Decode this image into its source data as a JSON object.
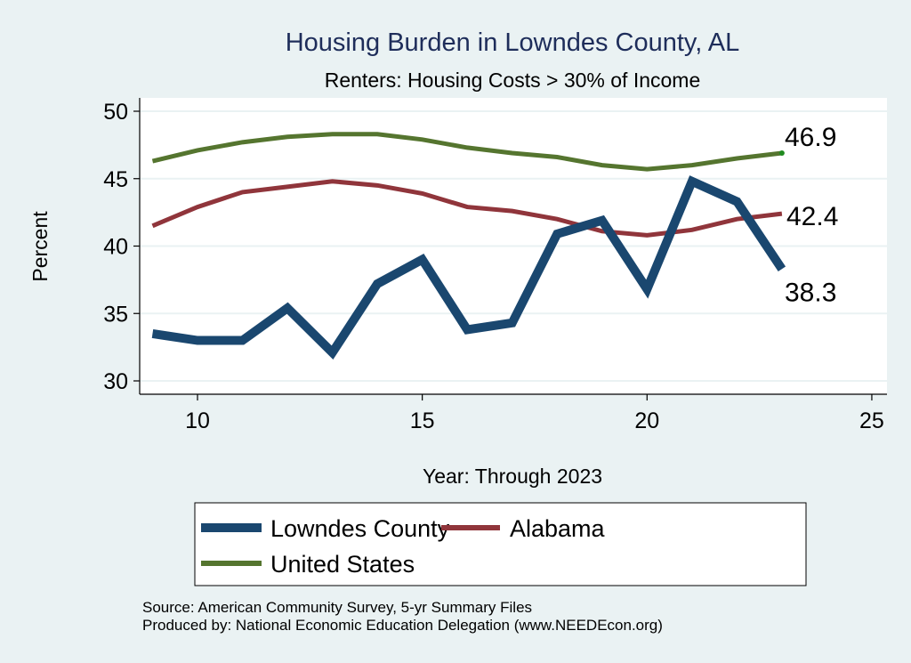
{
  "chart_data": {
    "type": "line",
    "title": "Housing Burden in Lowndes County, AL",
    "subtitle": "Renters: Housing Costs > 30% of Income",
    "xlabel": "Year: Through 2023",
    "ylabel": "Percent",
    "xlim": [
      9,
      25
    ],
    "ylim": [
      30,
      50
    ],
    "xticks": [
      10,
      15,
      20,
      25
    ],
    "yticks": [
      30,
      35,
      40,
      45,
      50
    ],
    "grid": true,
    "x": [
      9,
      10,
      11,
      12,
      13,
      14,
      15,
      16,
      17,
      18,
      19,
      20,
      21,
      22,
      23
    ],
    "series": [
      {
        "name": "Lowndes County",
        "color": "#1a476f",
        "values": [
          33.5,
          33.0,
          33.0,
          35.4,
          32.1,
          37.2,
          39.0,
          33.8,
          34.3,
          40.9,
          41.9,
          36.8,
          44.8,
          43.3,
          38.3
        ],
        "end_label": "38.3"
      },
      {
        "name": "Alabama",
        "color": "#90353b",
        "values": [
          41.5,
          42.9,
          44.0,
          44.4,
          44.8,
          44.5,
          43.9,
          42.9,
          42.6,
          42.0,
          41.1,
          40.8,
          41.2,
          42.0,
          42.4
        ],
        "end_label": "42.4"
      },
      {
        "name": "United States",
        "color": "#55752f",
        "values": [
          46.3,
          47.1,
          47.7,
          48.1,
          48.3,
          48.3,
          47.9,
          47.3,
          46.9,
          46.6,
          46.0,
          45.7,
          46.0,
          46.5,
          46.9
        ],
        "end_label": "46.9"
      }
    ],
    "legend": {
      "placement": "bottom",
      "entries": [
        "Lowndes County",
        "Alabama",
        "United States"
      ]
    },
    "notes": [
      "Source: American Community Survey, 5-yr Summary Files",
      "Produced by: National Economic Education Delegation (www.NEEDEcon.org)"
    ]
  }
}
